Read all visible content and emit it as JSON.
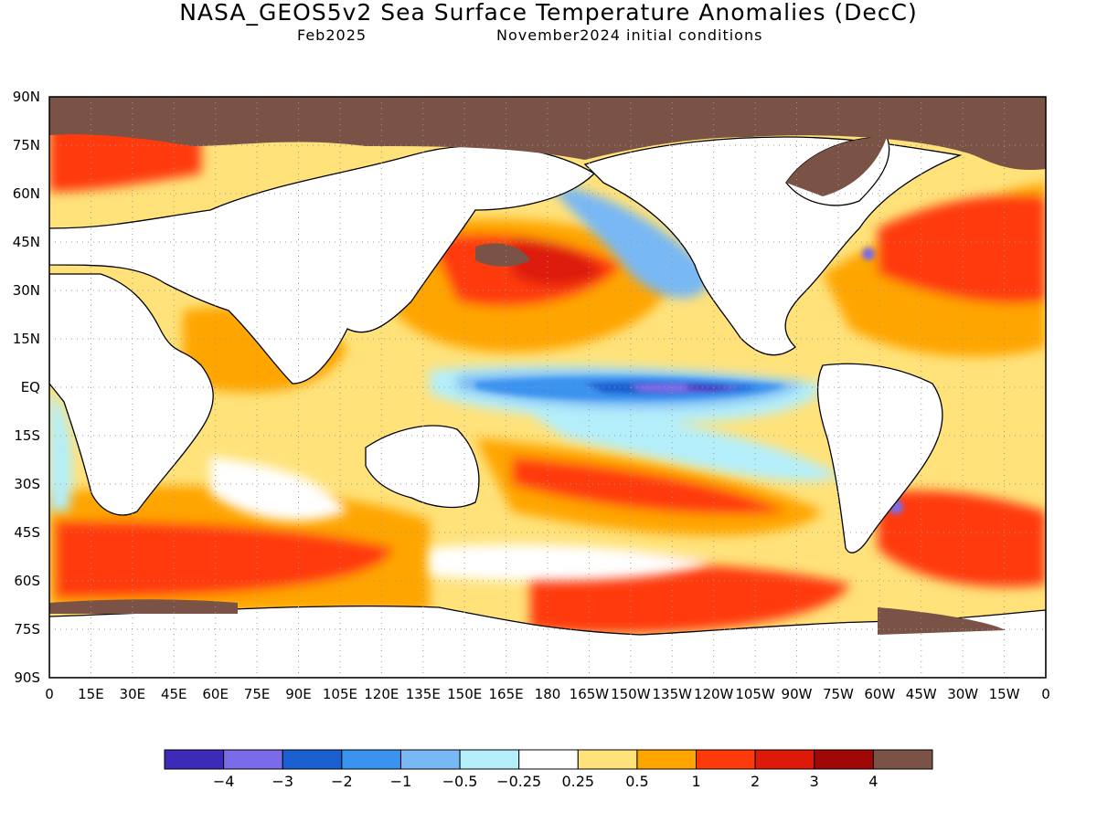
{
  "title": "NASA_GEOS5v2 Sea Surface Temperature Anomalies (DecC)",
  "subtitle_left": "Feb2025",
  "subtitle_right": "November2024 initial conditions",
  "map": {
    "lon_labels": [
      "0",
      "15E",
      "30E",
      "45E",
      "60E",
      "75E",
      "90E",
      "105E",
      "120E",
      "135E",
      "150E",
      "165E",
      "180",
      "165W",
      "150W",
      "135W",
      "120W",
      "105W",
      "90W",
      "75W",
      "60W",
      "45W",
      "30W",
      "15W",
      "0"
    ],
    "lat_labels": [
      "90N",
      "75N",
      "60N",
      "45N",
      "30N",
      "15N",
      "EQ",
      "15S",
      "30S",
      "45S",
      "60S",
      "75S",
      "90S"
    ],
    "grid": "dotted",
    "land_color": "#ffffff",
    "ice_color": "#7b5246"
  },
  "colorbar": {
    "colors": [
      "#3d2ab8",
      "#7b6be8",
      "#1a5fd0",
      "#3b93f0",
      "#78b8f5",
      "#b4eefa",
      "#ffffff",
      "#ffe27a",
      "#ffa500",
      "#ff3a0a",
      "#dd1a0a",
      "#a00808",
      "#7b5246"
    ],
    "labels": [
      "−4",
      "−3",
      "−2",
      "−1",
      "−0.5",
      "−0.25",
      "0.25",
      "0.5",
      "1",
      "2",
      "3",
      "4"
    ]
  }
}
